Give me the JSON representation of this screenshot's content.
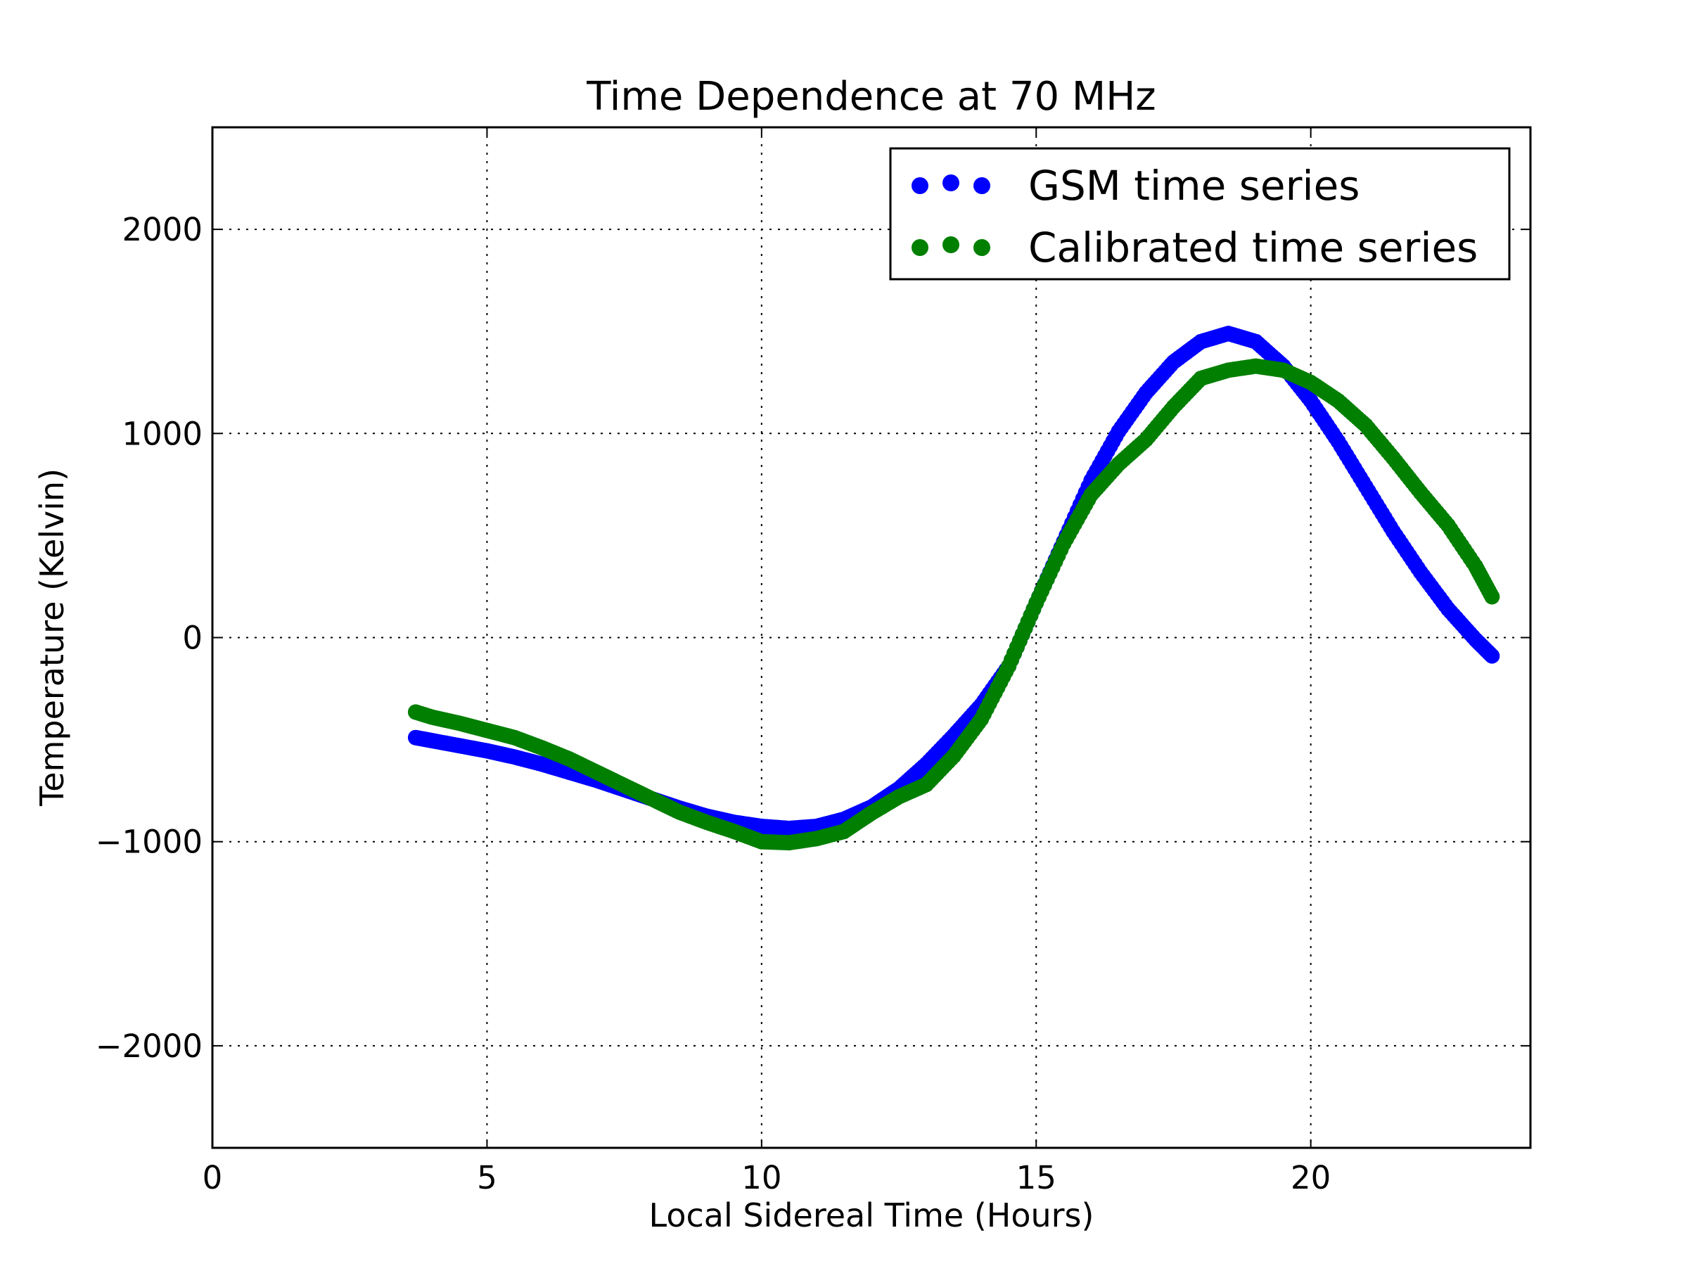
{
  "chart_data": {
    "type": "scatter",
    "title": "Time Dependence at 70 MHz",
    "xlabel": "Local Sidereal Time (Hours)",
    "ylabel": "Temperature (Kelvin)",
    "xlim": [
      0,
      24
    ],
    "ylim": [
      -2500,
      2500
    ],
    "x_ticks": [
      0,
      5,
      10,
      15,
      20
    ],
    "x_tick_labels": [
      "0",
      "5",
      "10",
      "15",
      "20"
    ],
    "y_ticks": [
      -2000,
      -1000,
      0,
      1000,
      2000
    ],
    "y_tick_labels": [
      "−2000",
      "−1000",
      "0",
      "1000",
      "2000"
    ],
    "grid": true,
    "legend_position": "top-right",
    "series": [
      {
        "name": "GSM time series",
        "color": "#0000ff",
        "points": [
          [
            3.7,
            -490
          ],
          [
            4.0,
            -505
          ],
          [
            4.5,
            -530
          ],
          [
            5.0,
            -555
          ],
          [
            5.5,
            -585
          ],
          [
            6.0,
            -620
          ],
          [
            6.5,
            -660
          ],
          [
            7.0,
            -700
          ],
          [
            7.5,
            -745
          ],
          [
            8.0,
            -790
          ],
          [
            8.5,
            -835
          ],
          [
            9.0,
            -875
          ],
          [
            9.5,
            -905
          ],
          [
            10.0,
            -925
          ],
          [
            10.5,
            -935
          ],
          [
            11.0,
            -925
          ],
          [
            11.5,
            -890
          ],
          [
            12.0,
            -830
          ],
          [
            12.5,
            -740
          ],
          [
            13.0,
            -620
          ],
          [
            13.5,
            -480
          ],
          [
            14.0,
            -330
          ],
          [
            14.5,
            -140
          ],
          [
            15.0,
            170
          ],
          [
            15.5,
            470
          ],
          [
            16.0,
            770
          ],
          [
            16.5,
            1010
          ],
          [
            17.0,
            1200
          ],
          [
            17.5,
            1350
          ],
          [
            18.0,
            1450
          ],
          [
            18.5,
            1490
          ],
          [
            19.0,
            1450
          ],
          [
            19.5,
            1330
          ],
          [
            20.0,
            1160
          ],
          [
            20.5,
            960
          ],
          [
            21.0,
            740
          ],
          [
            21.5,
            520
          ],
          [
            22.0,
            320
          ],
          [
            22.5,
            140
          ],
          [
            23.0,
            -10
          ],
          [
            23.3,
            -90
          ]
        ]
      },
      {
        "name": "Calibrated time series",
        "color": "#007f00",
        "points": [
          [
            3.7,
            -365
          ],
          [
            4.0,
            -390
          ],
          [
            4.5,
            -420
          ],
          [
            5.0,
            -455
          ],
          [
            5.5,
            -490
          ],
          [
            6.0,
            -540
          ],
          [
            6.5,
            -595
          ],
          [
            7.0,
            -660
          ],
          [
            7.5,
            -725
          ],
          [
            8.0,
            -790
          ],
          [
            8.5,
            -855
          ],
          [
            9.0,
            -905
          ],
          [
            9.5,
            -950
          ],
          [
            10.0,
            -1000
          ],
          [
            10.5,
            -1005
          ],
          [
            11.0,
            -985
          ],
          [
            11.5,
            -950
          ],
          [
            12.0,
            -860
          ],
          [
            12.5,
            -780
          ],
          [
            13.0,
            -720
          ],
          [
            13.5,
            -580
          ],
          [
            14.0,
            -400
          ],
          [
            14.5,
            -140
          ],
          [
            15.0,
            170
          ],
          [
            15.5,
            460
          ],
          [
            16.0,
            700
          ],
          [
            16.5,
            850
          ],
          [
            17.0,
            970
          ],
          [
            17.5,
            1130
          ],
          [
            18.0,
            1270
          ],
          [
            18.5,
            1310
          ],
          [
            19.0,
            1330
          ],
          [
            19.5,
            1310
          ],
          [
            20.0,
            1250
          ],
          [
            20.5,
            1160
          ],
          [
            21.0,
            1040
          ],
          [
            21.5,
            880
          ],
          [
            22.0,
            710
          ],
          [
            22.5,
            550
          ],
          [
            23.0,
            350
          ],
          [
            23.3,
            200
          ]
        ]
      }
    ]
  }
}
